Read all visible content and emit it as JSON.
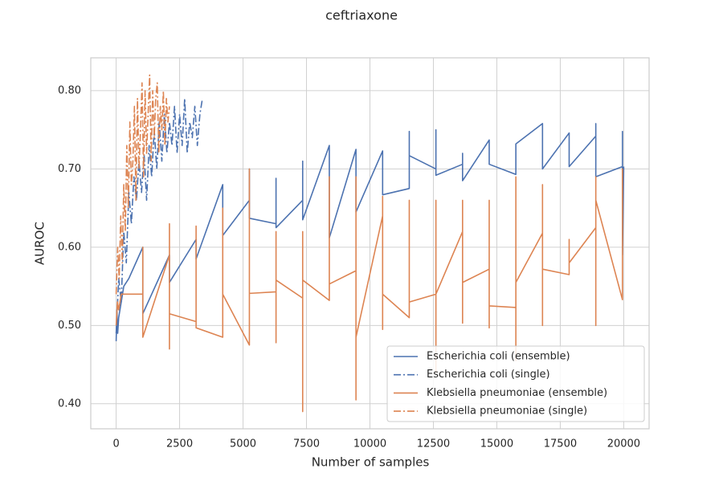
{
  "chart_data": {
    "type": "line",
    "title": "ceftriaxone",
    "x_label": "Number of samples",
    "y_label": "AUROC",
    "xlim": [
      -1000,
      21000
    ],
    "xticks": [
      0,
      2500,
      5000,
      7500,
      10000,
      12500,
      15000,
      17500,
      20000
    ],
    "ylim": [
      0.368,
      0.842
    ],
    "yticks": [
      {
        "value": 0.4,
        "label": "0.40"
      },
      {
        "value": 0.5,
        "label": "0.50"
      },
      {
        "value": 0.6,
        "label": "0.60"
      },
      {
        "value": 0.7,
        "label": "0.70"
      },
      {
        "value": 0.8,
        "label": "0.80"
      }
    ],
    "grid": true,
    "legend": "lower right",
    "series": [
      {
        "name": "Escherichia coli (ensemble)",
        "color": "#4c72b0",
        "style": "solid",
        "x": [
          0,
          30,
          60,
          100,
          200,
          300,
          500,
          1050,
          1050,
          2100,
          2100,
          3150,
          3150,
          4200,
          4200,
          5250,
          5250,
          5250,
          6300,
          6300,
          6300,
          7350,
          7350,
          7350,
          8400,
          8400,
          9450,
          9450,
          10500,
          10500,
          11550,
          11550,
          11550,
          12600,
          12600,
          12600,
          13650,
          13650,
          13650,
          14700,
          14700,
          15750,
          15750,
          16800,
          16800,
          17850,
          17850,
          18900,
          18900,
          18900,
          19950,
          19950,
          19950,
          20000
        ],
        "values": [
          0.48,
          0.52,
          0.49,
          0.51,
          0.53,
          0.55,
          0.56,
          0.6,
          0.515,
          0.59,
          0.555,
          0.61,
          0.585,
          0.68,
          0.615,
          0.66,
          0.7,
          0.637,
          0.63,
          0.688,
          0.625,
          0.66,
          0.71,
          0.635,
          0.73,
          0.612,
          0.725,
          0.645,
          0.723,
          0.667,
          0.675,
          0.748,
          0.717,
          0.7,
          0.75,
          0.692,
          0.706,
          0.72,
          0.685,
          0.737,
          0.706,
          0.693,
          0.732,
          0.758,
          0.7,
          0.746,
          0.703,
          0.742,
          0.758,
          0.69,
          0.703,
          0.748,
          0.59,
          0.703
        ]
      },
      {
        "name": "Escherichia coli (single)",
        "color": "#4c72b0",
        "style": "dashdot",
        "x": [
          0,
          100,
          200,
          300,
          400,
          500,
          600,
          700,
          800,
          900,
          1000,
          1100,
          1200,
          1300,
          1400,
          1500,
          1600,
          1700,
          1800,
          1900,
          2000,
          2100,
          2200,
          2300,
          2400,
          2500,
          2600,
          2700,
          2800,
          2900,
          3000,
          3100,
          3200,
          3300,
          3400
        ],
        "values": [
          0.49,
          0.56,
          0.53,
          0.62,
          0.58,
          0.67,
          0.63,
          0.69,
          0.66,
          0.71,
          0.67,
          0.72,
          0.66,
          0.73,
          0.69,
          0.75,
          0.7,
          0.76,
          0.71,
          0.77,
          0.72,
          0.76,
          0.73,
          0.78,
          0.72,
          0.77,
          0.73,
          0.79,
          0.72,
          0.76,
          0.74,
          0.78,
          0.73,
          0.77,
          0.79
        ]
      },
      {
        "name": "Klebsiella pneumoniae (ensemble)",
        "color": "#dd8452",
        "style": "solid",
        "x": [
          0,
          50,
          100,
          200,
          1050,
          1050,
          1050,
          2100,
          2100,
          2100,
          2100,
          3150,
          3150,
          3150,
          4200,
          4200,
          4200,
          5250,
          5250,
          5250,
          6300,
          6300,
          6300,
          6300,
          7350,
          7350,
          7350,
          7350,
          8400,
          8400,
          8400,
          9450,
          9450,
          9450,
          9450,
          10500,
          10500,
          10500,
          10500,
          11550,
          11550,
          11550,
          12600,
          12600,
          12600,
          12600,
          13650,
          13650,
          13650,
          13650,
          14700,
          14700,
          14700,
          14700,
          15750,
          15750,
          15750,
          15750,
          16800,
          16800,
          16800,
          16800,
          17850,
          17850,
          17850,
          18900,
          18900,
          18900,
          18900,
          19950,
          19950,
          19950
        ],
        "values": [
          0.5,
          0.53,
          0.52,
          0.54,
          0.54,
          0.6,
          0.485,
          0.59,
          0.63,
          0.47,
          0.515,
          0.505,
          0.627,
          0.497,
          0.485,
          0.65,
          0.54,
          0.475,
          0.7,
          0.541,
          0.543,
          0.62,
          0.478,
          0.558,
          0.535,
          0.62,
          0.39,
          0.558,
          0.532,
          0.69,
          0.553,
          0.57,
          0.69,
          0.405,
          0.485,
          0.64,
          0.665,
          0.495,
          0.54,
          0.51,
          0.66,
          0.53,
          0.54,
          0.66,
          0.44,
          0.54,
          0.62,
          0.66,
          0.503,
          0.555,
          0.572,
          0.66,
          0.497,
          0.525,
          0.523,
          0.69,
          0.455,
          0.555,
          0.618,
          0.68,
          0.5,
          0.572,
          0.565,
          0.61,
          0.58,
          0.625,
          0.69,
          0.5,
          0.66,
          0.533,
          0.7,
          0.59
        ]
      },
      {
        "name": "Klebsiella pneumoniae (single)",
        "color": "#dd8452",
        "style": "dashdot",
        "x": [
          0,
          60,
          120,
          180,
          240,
          300,
          360,
          420,
          480,
          540,
          600,
          660,
          720,
          780,
          840,
          900,
          960,
          1020,
          1080,
          1140,
          1200,
          1260,
          1320,
          1380,
          1440,
          1500,
          1560,
          1620,
          1680,
          1740,
          1800,
          1860,
          1920,
          1980,
          2040,
          2100
        ],
        "values": [
          0.54,
          0.6,
          0.56,
          0.64,
          0.58,
          0.68,
          0.62,
          0.73,
          0.65,
          0.76,
          0.68,
          0.71,
          0.78,
          0.66,
          0.79,
          0.7,
          0.75,
          0.81,
          0.69,
          0.8,
          0.72,
          0.77,
          0.82,
          0.71,
          0.8,
          0.74,
          0.79,
          0.81,
          0.72,
          0.78,
          0.75,
          0.8,
          0.73,
          0.79,
          0.76,
          0.78
        ]
      }
    ]
  }
}
